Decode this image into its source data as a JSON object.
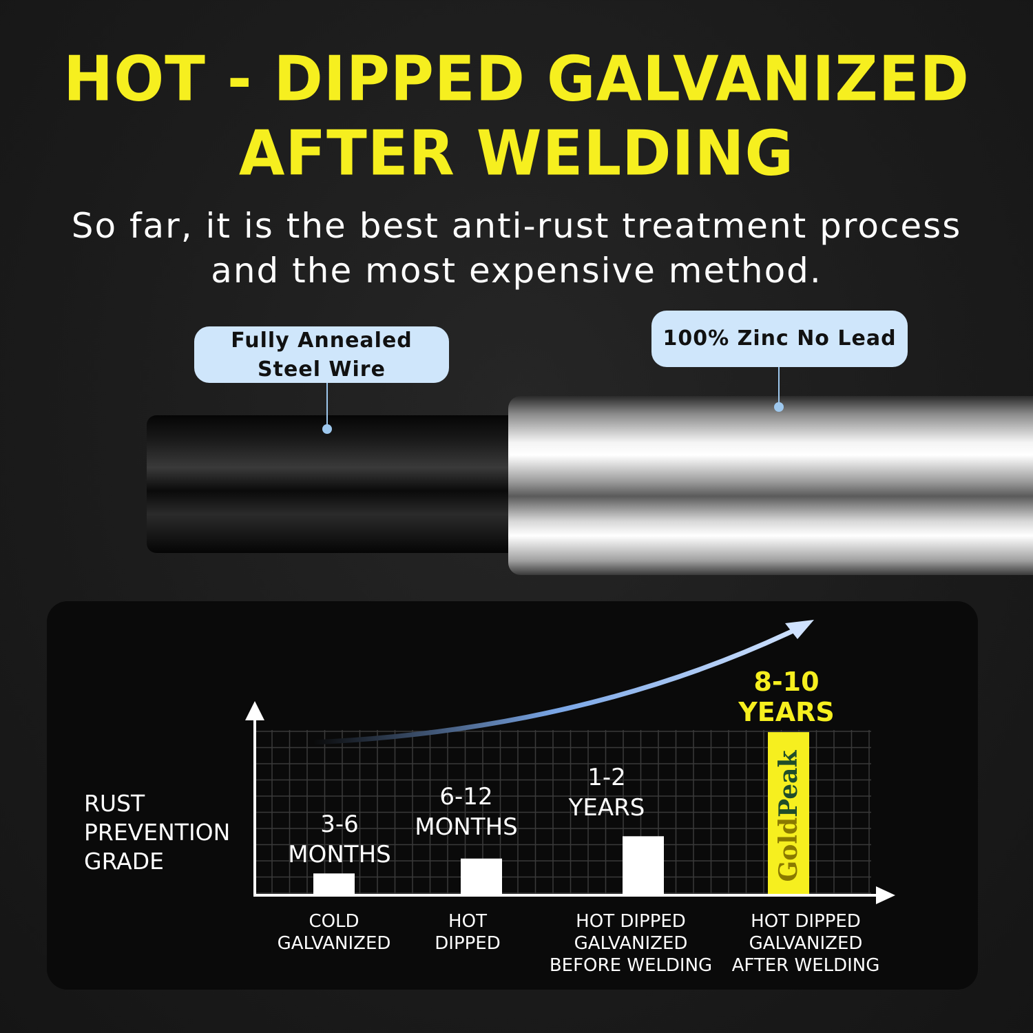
{
  "header": {
    "title_line1": "HOT - DIPPED GALVANIZED",
    "title_line2": "AFTER WELDING",
    "subtitle_line1": "So far, it is the best anti-rust treatment process",
    "subtitle_line2": "and the most expensive method."
  },
  "callouts": {
    "core_line1": "Fully Annealed",
    "core_line2": "Steel Wire",
    "coating": "100% Zinc No Lead"
  },
  "colors": {
    "title": "#f6ef1f",
    "callout_bg": "#cfe6fb",
    "highlight_bar": "#f6ef1f",
    "bar": "#ffffff"
  },
  "chart_data": {
    "type": "bar",
    "ylabel": [
      "RUST",
      "PREVENTION",
      "GRADE"
    ],
    "grid": true,
    "trend_arrow": "rising curved blue arrow",
    "categories": [
      [
        "COLD",
        "GALVANIZED"
      ],
      [
        "HOT",
        "DIPPED"
      ],
      [
        "HOT DIPPED",
        "GALVANIZED",
        "BEFORE WELDING"
      ],
      [
        "HOT DIPPED",
        "GALVANIZED",
        "AFTER WELDING"
      ]
    ],
    "value_labels": [
      [
        "3-6",
        "MONTHS"
      ],
      [
        "6-12",
        "MONTHS"
      ],
      [
        "1-2",
        "YEARS"
      ],
      [
        "8-10",
        "YEARS"
      ]
    ],
    "values_relative": [
      0.11,
      0.19,
      0.31,
      0.87
    ],
    "highlight_index": 3,
    "bar_logo": "GoldPeak"
  }
}
